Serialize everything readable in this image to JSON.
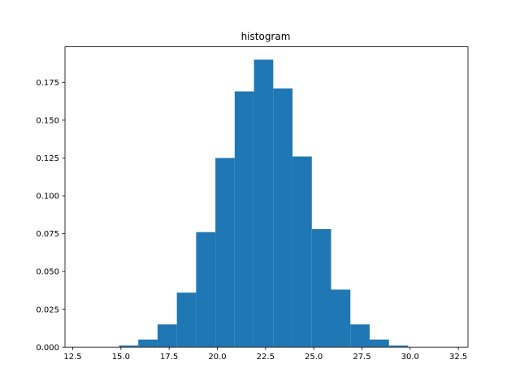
{
  "chart_data": {
    "type": "bar",
    "title": "histogram",
    "xlabel": "",
    "ylabel": "",
    "xlim": [
      12.1,
      33.0
    ],
    "ylim": [
      0,
      0.1985
    ],
    "grid": false,
    "legend": "none",
    "bar_color": "#1f77b4",
    "bins": [
      {
        "start": 12.9,
        "end": 13.9,
        "value": 0.0
      },
      {
        "start": 13.9,
        "end": 14.9,
        "value": 0.0
      },
      {
        "start": 14.9,
        "end": 15.9,
        "value": 0.001
      },
      {
        "start": 15.9,
        "end": 16.9,
        "value": 0.005
      },
      {
        "start": 16.9,
        "end": 17.9,
        "value": 0.015
      },
      {
        "start": 17.9,
        "end": 18.9,
        "value": 0.036
      },
      {
        "start": 18.9,
        "end": 19.9,
        "value": 0.076
      },
      {
        "start": 19.9,
        "end": 20.9,
        "value": 0.125
      },
      {
        "start": 20.9,
        "end": 21.9,
        "value": 0.169
      },
      {
        "start": 21.9,
        "end": 22.9,
        "value": 0.19
      },
      {
        "start": 22.9,
        "end": 23.9,
        "value": 0.171
      },
      {
        "start": 23.9,
        "end": 24.9,
        "value": 0.126
      },
      {
        "start": 24.9,
        "end": 25.9,
        "value": 0.078
      },
      {
        "start": 25.9,
        "end": 26.9,
        "value": 0.038
      },
      {
        "start": 26.9,
        "end": 27.9,
        "value": 0.015
      },
      {
        "start": 27.9,
        "end": 28.9,
        "value": 0.005
      },
      {
        "start": 28.9,
        "end": 29.9,
        "value": 0.001
      },
      {
        "start": 29.9,
        "end": 30.9,
        "value": 0.0
      },
      {
        "start": 30.9,
        "end": 31.9,
        "value": 0.0
      }
    ],
    "x_ticks": [
      {
        "value": 12.5,
        "label": "12.5"
      },
      {
        "value": 15.0,
        "label": "15.0"
      },
      {
        "value": 17.5,
        "label": "17.5"
      },
      {
        "value": 20.0,
        "label": "20.0"
      },
      {
        "value": 22.5,
        "label": "22.5"
      },
      {
        "value": 25.0,
        "label": "25.0"
      },
      {
        "value": 27.5,
        "label": "27.5"
      },
      {
        "value": 30.0,
        "label": "30.0"
      },
      {
        "value": 32.5,
        "label": "32.5"
      }
    ],
    "y_ticks": [
      {
        "value": 0.0,
        "label": "0.000"
      },
      {
        "value": 0.025,
        "label": "0.025"
      },
      {
        "value": 0.05,
        "label": "0.050"
      },
      {
        "value": 0.075,
        "label": "0.075"
      },
      {
        "value": 0.1,
        "label": "0.100"
      },
      {
        "value": 0.125,
        "label": "0.125"
      },
      {
        "value": 0.15,
        "label": "0.150"
      },
      {
        "value": 0.175,
        "label": "0.175"
      }
    ]
  }
}
